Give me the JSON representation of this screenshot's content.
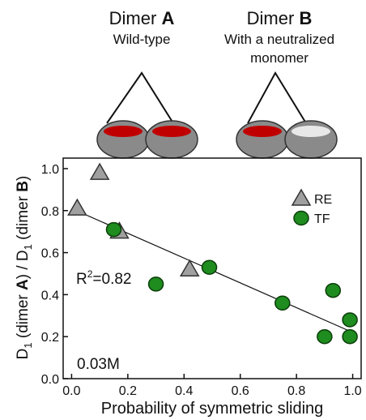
{
  "diagram": {
    "dimer_a": {
      "title": [
        "Dimer ",
        "A"
      ],
      "subtitle": "Wild-type"
    },
    "dimer_b": {
      "title": [
        "Dimer ",
        "B"
      ],
      "subtitle": [
        "With a neutralized",
        "monomer"
      ]
    }
  },
  "chart_data": {
    "type": "scatter",
    "xlabel": "Probability of symmetric sliding",
    "ylabel": [
      "D",
      "1",
      " (dimer ",
      "A",
      ") / D",
      "1",
      " (dimer ",
      "B",
      ")"
    ],
    "annotations": {
      "r_squared": [
        "R",
        "2",
        "=0.82"
      ],
      "concentration": "0.03M"
    },
    "xlim": [
      -0.03,
      1.03
    ],
    "ylim": [
      0,
      1.05
    ],
    "xticks": [
      {
        "value": 0,
        "label": "0.0"
      },
      {
        "value": 0.2,
        "label": "0.2"
      },
      {
        "value": 0.4,
        "label": "0.4"
      },
      {
        "value": 0.6,
        "label": "0.6"
      },
      {
        "value": 0.8,
        "label": "0.8"
      },
      {
        "value": 1,
        "label": "1.0"
      }
    ],
    "yticks": [
      {
        "value": 0,
        "label": "0.0"
      },
      {
        "value": 0.2,
        "label": "0.2"
      },
      {
        "value": 0.4,
        "label": "0.4"
      },
      {
        "value": 0.6,
        "label": "0.6"
      },
      {
        "value": 0.8,
        "label": "0.8"
      },
      {
        "value": 1,
        "label": "1.0"
      }
    ],
    "legend": "upper right",
    "series": [
      {
        "name": "RE",
        "marker": "triangle",
        "color": "#a0a0a0",
        "x": [
          0.02,
          0.1,
          0.17,
          0.42
        ],
        "values": [
          0.81,
          0.98,
          0.7,
          0.52
        ]
      },
      {
        "name": "TF",
        "marker": "circle",
        "color": "#1e8c1e",
        "x": [
          0.15,
          0.3,
          0.49,
          0.75,
          0.9,
          0.93,
          0.99,
          0.99
        ],
        "values": [
          0.71,
          0.45,
          0.53,
          0.36,
          0.2,
          0.42,
          0.28,
          0.2
        ]
      }
    ],
    "fit": {
      "x": [
        0,
        1
      ],
      "values": [
        0.81,
        0.22
      ]
    }
  }
}
